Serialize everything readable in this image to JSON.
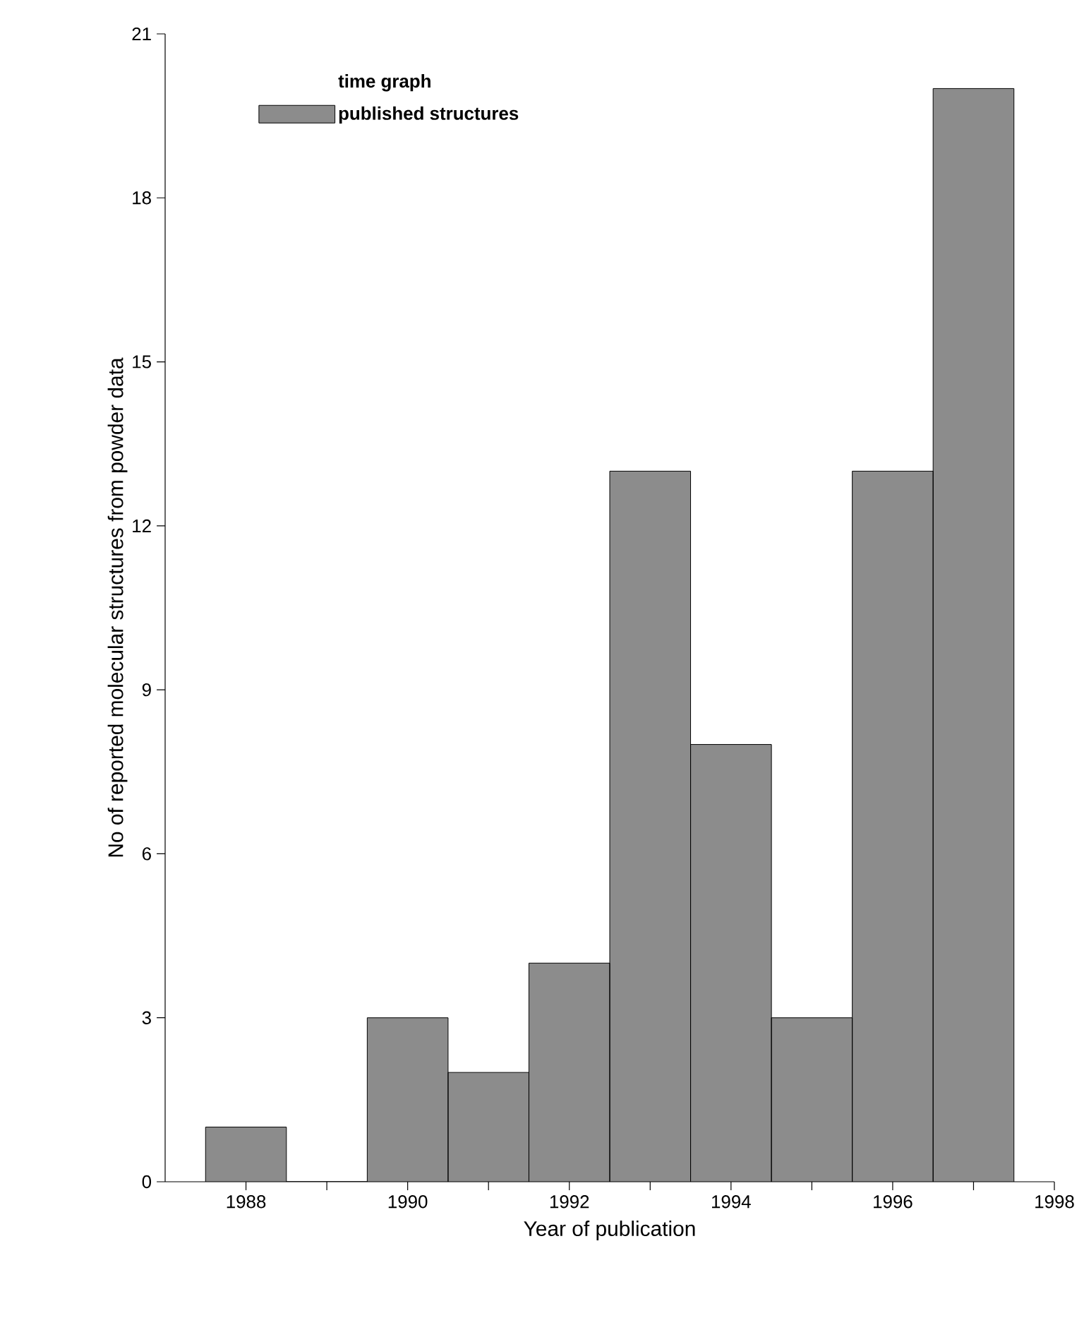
{
  "chart_data": {
    "type": "histogram",
    "xlabel": "Year of publication",
    "ylabel": "No of reported molecular structures from powder data",
    "legend_title": "time graph",
    "bins": [
      1987.5,
      1988.5,
      1989.5,
      1990.5,
      1991.5,
      1992.5,
      1993.5,
      1994.5,
      1995.5,
      1996.5,
      1997.5
    ],
    "series": [
      {
        "name": "published structures",
        "color": "#8c8c8c",
        "values": [
          1,
          0,
          3,
          2,
          4,
          13,
          8,
          3,
          13,
          20
        ]
      }
    ],
    "xlim": [
      1987,
      1998
    ],
    "xticks": [
      1988,
      {
        "value": 1989,
        "label": null
      },
      1990,
      {
        "value": 1991,
        "label": null
      },
      1992,
      {
        "value": 1993,
        "label": null
      },
      1994,
      {
        "value": 1995,
        "label": null
      },
      1996,
      {
        "value": 1997,
        "label": null
      },
      1998
    ],
    "ylim": [
      0,
      21
    ],
    "yticks": [
      0,
      3,
      6,
      9,
      12,
      15,
      18,
      21
    ],
    "grid": false,
    "legend": "top left"
  }
}
